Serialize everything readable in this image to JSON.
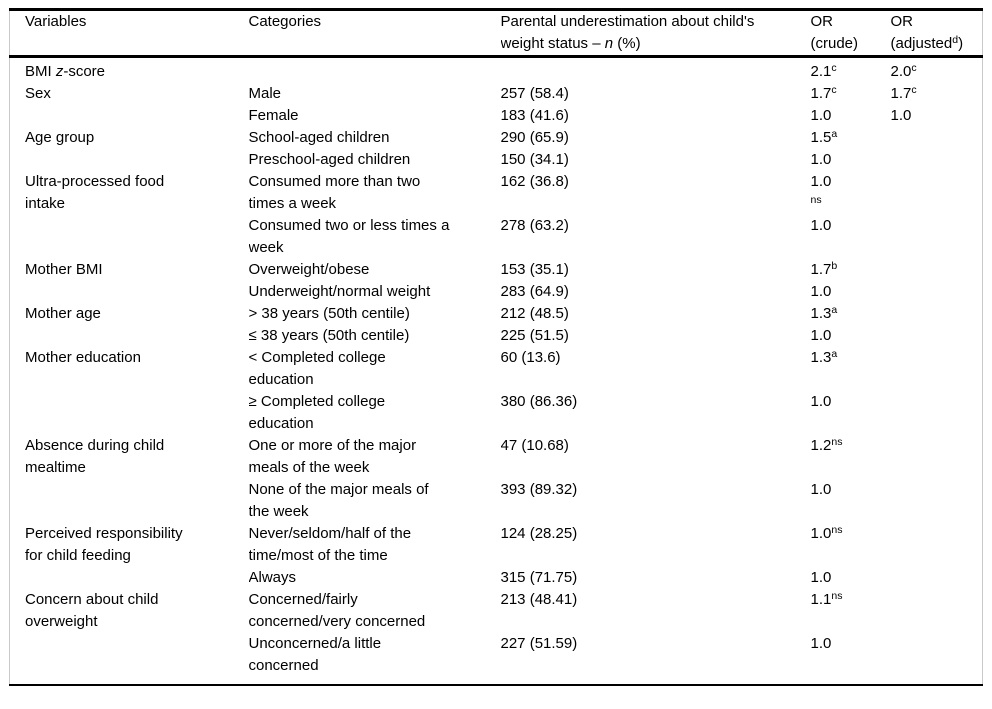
{
  "table": {
    "title_hint": "Parental underestimation of child weight status - odds ratios table",
    "columns": [
      {
        "key": "variable",
        "label": "Variables"
      },
      {
        "key": "category",
        "label": "Categories"
      },
      {
        "key": "n_pct",
        "label": "Parental underestimation about child's{br}weight status – {i:n} (%)"
      },
      {
        "key": "or_crude",
        "label": "OR{br}(crude)"
      },
      {
        "key": "or_adjusted",
        "label": "OR{br}(adjusted{sup:d})"
      }
    ],
    "rows": [
      {
        "variable": "BMI {i:z}-score",
        "category": "",
        "n_pct": "",
        "or_crude": "2.1{sup:c}",
        "or_adjusted": "2.0{sup:c}"
      },
      {
        "variable": "Sex",
        "category": "Male",
        "n_pct": "257 (58.4)",
        "or_crude": "1.7{sup:c}",
        "or_adjusted": "1.7{sup:c}"
      },
      {
        "variable": "",
        "category": "Female",
        "n_pct": "183 (41.6)",
        "or_crude": "1.0",
        "or_adjusted": "1.0"
      },
      {
        "variable": "Age group",
        "category": "School-aged children",
        "n_pct": "290 (65.9)",
        "or_crude": "1.5{sup:a}",
        "or_adjusted": ""
      },
      {
        "variable": "",
        "category": "Preschool-aged children",
        "n_pct": "150 (34.1)",
        "or_crude": "1.0",
        "or_adjusted": ""
      },
      {
        "variable": "Ultra-processed food{br}intake",
        "category": "Consumed more than two{br}times a week",
        "n_pct": "162 (36.8)",
        "or_crude": "1.0{br}{sup:ns}",
        "or_adjusted": ""
      },
      {
        "variable": "",
        "category": "Consumed two or less times a{br}week",
        "n_pct": "278 (63.2)",
        "or_crude": "1.0",
        "or_adjusted": ""
      },
      {
        "variable": "Mother BMI",
        "category": "Overweight/obese",
        "n_pct": "153 (35.1)",
        "or_crude": "1.7{sup:b}",
        "or_adjusted": ""
      },
      {
        "variable": "",
        "category": "Underweight/normal weight",
        "n_pct": "283 (64.9)",
        "or_crude": "1.0",
        "or_adjusted": ""
      },
      {
        "variable": "Mother age",
        "category": "> 38 years (50th centile)",
        "n_pct": "212 (48.5)",
        "or_crude": "1.3{sup:a}",
        "or_adjusted": ""
      },
      {
        "variable": "",
        "category": "≤ 38 years (50th centile)",
        "n_pct": "225 (51.5)",
        "or_crude": "1.0",
        "or_adjusted": ""
      },
      {
        "variable": "Mother education",
        "category": "< Completed college{br}education",
        "n_pct": "60 (13.6)",
        "or_crude": "1.3{sup:a}",
        "or_adjusted": ""
      },
      {
        "variable": "",
        "category": "≥ Completed college{br}education",
        "n_pct": "380 (86.36)",
        "or_crude": "1.0",
        "or_adjusted": ""
      },
      {
        "variable": "Absence during child{br}mealtime",
        "category": "One or more of the major{br}meals of the week",
        "n_pct": "47 (10.68)",
        "or_crude": "1.2{sup:ns}",
        "or_adjusted": ""
      },
      {
        "variable": "",
        "category": "None of the major meals of{br}the week",
        "n_pct": "393 (89.32)",
        "or_crude": "1.0",
        "or_adjusted": ""
      },
      {
        "variable": "Perceived responsibility{br}for child feeding",
        "category": "Never/seldom/half of the{br}time/most of the time",
        "n_pct": "124 (28.25)",
        "or_crude": "1.0{sup:ns}",
        "or_adjusted": ""
      },
      {
        "variable": "",
        "category": "Always",
        "n_pct": "315 (71.75)",
        "or_crude": "1.0",
        "or_adjusted": ""
      },
      {
        "variable": "Concern about child{br}overweight",
        "category": "Concerned/fairly{br}concerned/very concerned",
        "n_pct": "213 (48.41)",
        "or_crude": "1.1{sup:ns}",
        "or_adjusted": ""
      },
      {
        "variable": "",
        "category": "Unconcerned/a little{br}concerned",
        "n_pct": "227 (51.59)",
        "or_crude": "1.0",
        "or_adjusted": ""
      }
    ],
    "superscript_markers": [
      "a",
      "b",
      "c",
      "d",
      "ns"
    ]
  },
  "colors": {
    "background": "#ffffff",
    "text": "#000000",
    "border_strong": "#000000",
    "border_light": "#c9c9c9"
  }
}
